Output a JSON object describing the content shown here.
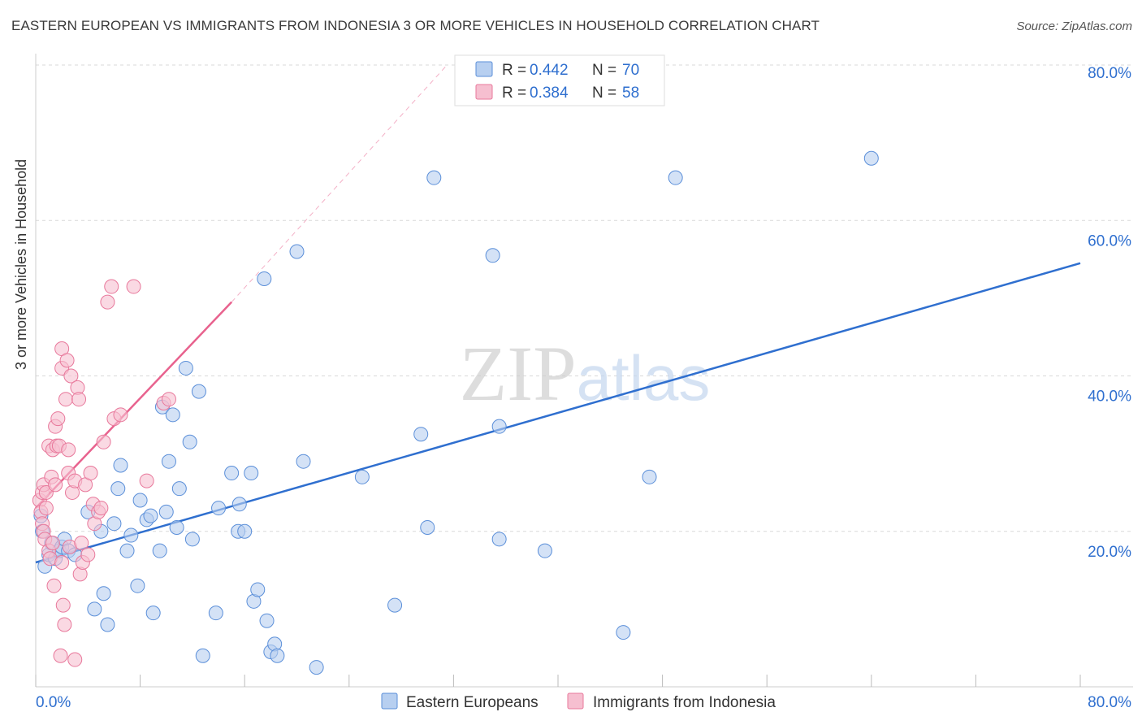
{
  "chart_data": {
    "type": "scatter",
    "title": "EASTERN EUROPEAN VS IMMIGRANTS FROM INDONESIA 3 OR MORE VEHICLES IN HOUSEHOLD CORRELATION CHART",
    "source": "Source: ZipAtlas.com",
    "ylabel": "3 or more Vehicles in Household",
    "xlim": [
      0,
      80
    ],
    "ylim": [
      0,
      80
    ],
    "x_tick_labels": [
      "0.0%",
      "80.0%"
    ],
    "y_ticks": [
      20,
      40,
      60,
      80
    ],
    "y_tick_labels": [
      "20.0%",
      "40.0%",
      "60.0%",
      "80.0%"
    ],
    "watermark": "ZIPatlas",
    "colors": {
      "blue": "#5b8fd9",
      "blue_fill": "#b7cff0",
      "blue_line": "#2f6fcf",
      "pink": "#e8789b",
      "pink_fill": "#f6bfd0",
      "pink_line": "#e8628e",
      "value_text": "#2f6fcf"
    },
    "legend": [
      {
        "r_label": "R =",
        "r": "0.442",
        "n_label": "N =",
        "n": "70"
      },
      {
        "r_label": "R =",
        "r": "0.384",
        "n_label": "N =",
        "n": "58"
      }
    ],
    "series": [
      {
        "name": "Eastern Europeans",
        "trend": {
          "x0": 0,
          "y0": 16,
          "x1": 80,
          "y1": 54.5
        },
        "points": [
          [
            0.4,
            22
          ],
          [
            0.5,
            20
          ],
          [
            0.7,
            15.5
          ],
          [
            1,
            17
          ],
          [
            1.2,
            18.5
          ],
          [
            1.5,
            16.5
          ],
          [
            1.8,
            17.5
          ],
          [
            2,
            18
          ],
          [
            2.2,
            19
          ],
          [
            2.5,
            17.5
          ],
          [
            3,
            17
          ],
          [
            4,
            22.5
          ],
          [
            4.5,
            10
          ],
          [
            5,
            20
          ],
          [
            5.2,
            12
          ],
          [
            5.5,
            8
          ],
          [
            6,
            21
          ],
          [
            6.3,
            25.5
          ],
          [
            6.5,
            28.5
          ],
          [
            7,
            17.5
          ],
          [
            7.3,
            19.5
          ],
          [
            7.8,
            13
          ],
          [
            8,
            24
          ],
          [
            8.5,
            21.5
          ],
          [
            8.8,
            22
          ],
          [
            9,
            9.5
          ],
          [
            9.5,
            17.5
          ],
          [
            9.7,
            36
          ],
          [
            10,
            22.5
          ],
          [
            10.2,
            29
          ],
          [
            10.5,
            35
          ],
          [
            10.8,
            20.5
          ],
          [
            11,
            25.5
          ],
          [
            11.5,
            41
          ],
          [
            11.8,
            31.5
          ],
          [
            12,
            19
          ],
          [
            12.5,
            38
          ],
          [
            12.8,
            4
          ],
          [
            13.8,
            9.5
          ],
          [
            14,
            23
          ],
          [
            15,
            27.5
          ],
          [
            15.5,
            20
          ],
          [
            15.6,
            23.5
          ],
          [
            16,
            20
          ],
          [
            16.5,
            27.5
          ],
          [
            16.7,
            11
          ],
          [
            17,
            12.5
          ],
          [
            17.5,
            52.5
          ],
          [
            17.7,
            8.5
          ],
          [
            18,
            4.5
          ],
          [
            18.3,
            5.5
          ],
          [
            18.5,
            4
          ],
          [
            20,
            56
          ],
          [
            20.5,
            29
          ],
          [
            21.5,
            2.5
          ],
          [
            25,
            27
          ],
          [
            27.5,
            10.5
          ],
          [
            29.5,
            32.5
          ],
          [
            30,
            20.5
          ],
          [
            30.5,
            65.5
          ],
          [
            35,
            55.5
          ],
          [
            35.5,
            33.5
          ],
          [
            35.5,
            19
          ],
          [
            39,
            17.5
          ],
          [
            45,
            7
          ],
          [
            47,
            27
          ],
          [
            49,
            65.5
          ],
          [
            64,
            68
          ]
        ]
      },
      {
        "name": "Immigrants from Indonesia",
        "trend": {
          "x0": 0,
          "y0": 23,
          "x1": 15,
          "y1": 49.5,
          "dash_x1": 31.5,
          "dash_y1": 80
        },
        "points": [
          [
            0.3,
            24
          ],
          [
            0.4,
            22.5
          ],
          [
            0.5,
            25
          ],
          [
            0.5,
            21
          ],
          [
            0.6,
            20
          ],
          [
            0.6,
            26
          ],
          [
            0.7,
            19
          ],
          [
            0.8,
            25
          ],
          [
            0.8,
            23
          ],
          [
            1,
            31
          ],
          [
            1,
            17.5
          ],
          [
            1.1,
            16.5
          ],
          [
            1.2,
            27
          ],
          [
            1.3,
            18.5
          ],
          [
            1.3,
            30.5
          ],
          [
            1.4,
            13
          ],
          [
            1.5,
            33.5
          ],
          [
            1.5,
            26
          ],
          [
            1.6,
            31
          ],
          [
            1.7,
            34.5
          ],
          [
            1.8,
            31
          ],
          [
            1.9,
            4
          ],
          [
            2,
            16
          ],
          [
            2,
            41
          ],
          [
            2,
            43.5
          ],
          [
            2.1,
            10.5
          ],
          [
            2.2,
            8
          ],
          [
            2.3,
            37
          ],
          [
            2.4,
            42
          ],
          [
            2.5,
            27.5
          ],
          [
            2.5,
            30.5
          ],
          [
            2.6,
            18
          ],
          [
            2.7,
            40
          ],
          [
            2.8,
            25
          ],
          [
            3,
            26.5
          ],
          [
            3,
            3.5
          ],
          [
            3.2,
            38.5
          ],
          [
            3.3,
            37
          ],
          [
            3.4,
            14.5
          ],
          [
            3.5,
            18.5
          ],
          [
            3.6,
            16
          ],
          [
            3.8,
            26
          ],
          [
            4,
            17
          ],
          [
            4.2,
            27.5
          ],
          [
            4.4,
            23.5
          ],
          [
            4.5,
            21
          ],
          [
            4.8,
            22.5
          ],
          [
            5,
            23
          ],
          [
            5.2,
            31.5
          ],
          [
            5.5,
            49.5
          ],
          [
            5.8,
            51.5
          ],
          [
            6,
            34.5
          ],
          [
            6.5,
            35
          ],
          [
            7.5,
            51.5
          ],
          [
            8.5,
            26.5
          ],
          [
            9.8,
            36.5
          ],
          [
            10.2,
            37
          ]
        ]
      }
    ]
  }
}
